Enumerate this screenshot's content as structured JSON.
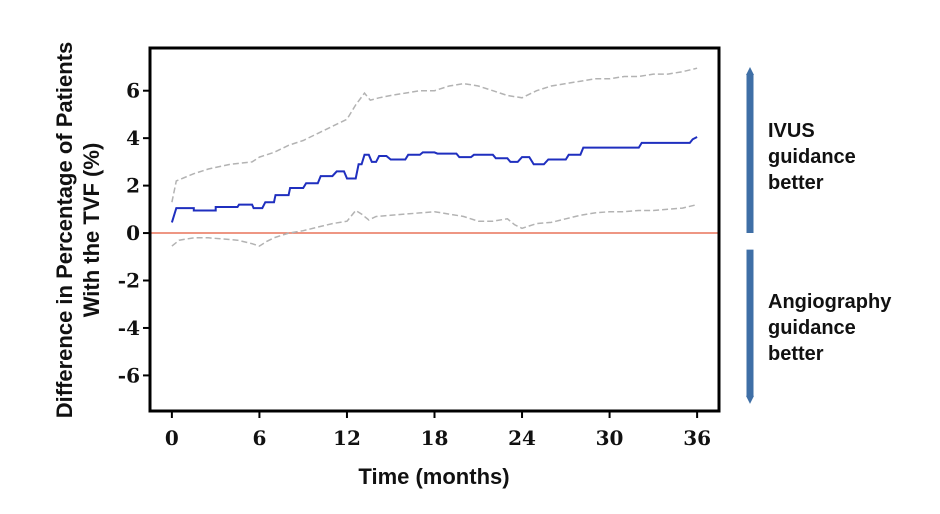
{
  "chart_data": {
    "type": "line",
    "xlabel": "Time (months)",
    "ylabel_lines": [
      "Difference in Percentage of Patients",
      "With the TVF (%)"
    ],
    "xlim": [
      -1.5,
      37.5
    ],
    "ylim": [
      -7.5,
      7.8
    ],
    "x_ticks": [
      0,
      6,
      12,
      18,
      24,
      30,
      36
    ],
    "y_ticks": [
      6,
      4,
      2,
      0,
      -2,
      -4,
      -6
    ],
    "grid": false,
    "reference_line": {
      "y": 0,
      "color": "#e8735a"
    },
    "series": [
      {
        "role": "estimate",
        "color": "#1f2fbf",
        "style": "solid",
        "x": [
          0,
          0.3,
          1.5,
          1.5,
          3.0,
          3.0,
          4.5,
          4.6,
          5.5,
          5.6,
          6.2,
          6.4,
          7.0,
          7.1,
          8.0,
          8.1,
          9.0,
          9.2,
          10.0,
          10.2,
          11.0,
          11.3,
          11.8,
          12.0,
          12.6,
          12.8,
          13.0,
          13.2,
          13.5,
          13.7,
          14.0,
          14.2,
          14.7,
          15.0,
          16.0,
          16.2,
          17.0,
          17.2,
          18.0,
          18.2,
          19.5,
          19.7,
          20.5,
          20.7,
          22.0,
          22.2,
          23.0,
          23.2,
          23.7,
          24.0,
          24.5,
          24.8,
          25.5,
          25.8,
          27.0,
          27.2,
          28.0,
          28.2,
          32.0,
          32.2,
          35.5,
          35.7,
          36.0
        ],
        "y": [
          0.45,
          1.05,
          1.05,
          0.95,
          0.95,
          1.1,
          1.1,
          1.2,
          1.2,
          1.05,
          1.05,
          1.3,
          1.3,
          1.6,
          1.6,
          1.9,
          1.9,
          2.1,
          2.1,
          2.4,
          2.4,
          2.6,
          2.6,
          2.3,
          2.3,
          2.9,
          2.9,
          3.3,
          3.3,
          3.0,
          3.0,
          3.25,
          3.25,
          3.1,
          3.1,
          3.3,
          3.3,
          3.4,
          3.4,
          3.35,
          3.35,
          3.2,
          3.2,
          3.3,
          3.3,
          3.15,
          3.15,
          3.0,
          3.0,
          3.2,
          3.2,
          2.9,
          2.9,
          3.1,
          3.1,
          3.3,
          3.3,
          3.6,
          3.6,
          3.8,
          3.8,
          3.95,
          4.05
        ]
      },
      {
        "role": "upper-bound",
        "color": "#b3b3b3",
        "style": "dashed",
        "x": [
          0,
          0.3,
          1.5,
          2.5,
          4.0,
          5.5,
          6.0,
          7.0,
          8.0,
          9.0,
          10.0,
          11.0,
          12.0,
          12.6,
          13.2,
          13.6,
          14.2,
          15.0,
          16.0,
          17.0,
          18.0,
          19.0,
          20.0,
          21.0,
          22.0,
          23.0,
          24.0,
          25.0,
          26.0,
          27.0,
          28.0,
          29.0,
          30.0,
          31.0,
          32.0,
          33.0,
          34.0,
          35.0,
          36.0
        ],
        "y": [
          1.3,
          2.2,
          2.5,
          2.7,
          2.9,
          3.0,
          3.2,
          3.4,
          3.7,
          3.9,
          4.2,
          4.5,
          4.8,
          5.4,
          5.9,
          5.6,
          5.7,
          5.8,
          5.9,
          6.0,
          6.0,
          6.2,
          6.3,
          6.2,
          6.0,
          5.8,
          5.7,
          6.0,
          6.2,
          6.3,
          6.4,
          6.5,
          6.5,
          6.6,
          6.6,
          6.7,
          6.7,
          6.8,
          6.95
        ]
      },
      {
        "role": "lower-bound",
        "color": "#b3b3b3",
        "style": "dashed",
        "x": [
          0,
          0.5,
          1.5,
          2.5,
          3.5,
          4.5,
          5.5,
          6.0,
          6.5,
          7.0,
          8.0,
          9.0,
          10.0,
          11.0,
          12.0,
          12.6,
          13.0,
          13.5,
          14.0,
          15.0,
          16.0,
          17.0,
          18.0,
          19.0,
          20.0,
          21.0,
          22.0,
          23.0,
          23.5,
          24.0,
          25.0,
          26.0,
          27.0,
          28.0,
          29.0,
          30.0,
          31.0,
          32.0,
          33.0,
          34.0,
          35.0,
          36.0
        ],
        "y": [
          -0.55,
          -0.3,
          -0.2,
          -0.2,
          -0.25,
          -0.3,
          -0.45,
          -0.55,
          -0.35,
          -0.2,
          0.0,
          0.1,
          0.25,
          0.4,
          0.5,
          0.95,
          0.8,
          0.55,
          0.7,
          0.75,
          0.8,
          0.85,
          0.9,
          0.8,
          0.7,
          0.5,
          0.5,
          0.6,
          0.35,
          0.2,
          0.4,
          0.45,
          0.6,
          0.75,
          0.85,
          0.9,
          0.9,
          0.95,
          0.95,
          1.0,
          1.05,
          1.2
        ]
      }
    ],
    "annotations": [
      {
        "lines": [
          "IVUS",
          "guidance",
          "better"
        ],
        "arrow": "up",
        "from": 0,
        "to": 7
      },
      {
        "lines": [
          "Angiography",
          "guidance",
          "better"
        ],
        "arrow": "down",
        "from": -0.7,
        "to": -7.2
      }
    ],
    "arrow_color": "#3f6fa6"
  }
}
